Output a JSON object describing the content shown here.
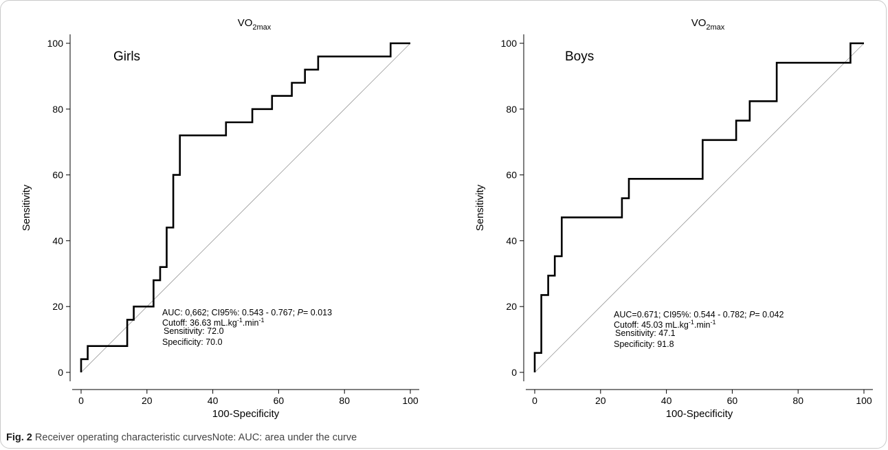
{
  "figure": {
    "caption_label": "Fig. 2",
    "caption_text": "Receiver operating characteristic curvesNote: AUC: area under the curve"
  },
  "chart_data": [
    {
      "type": "line",
      "title_base": "VO",
      "title_sub": "2max",
      "panel_label": "Girls",
      "xlabel": "100-Specificity",
      "ylabel": "Sensitivity",
      "xlim": [
        0,
        100
      ],
      "ylim": [
        0,
        100
      ],
      "x_ticks": [
        0,
        20,
        40,
        60,
        80,
        100
      ],
      "y_ticks": [
        0,
        20,
        40,
        60,
        80,
        100
      ],
      "grid": false,
      "reference_line": [
        [
          0,
          0
        ],
        [
          100,
          100
        ]
      ],
      "series": [
        {
          "points": [
            [
              0,
              0
            ],
            [
              0,
              4
            ],
            [
              2,
              4
            ],
            [
              2,
              8
            ],
            [
              14,
              8
            ],
            [
              14,
              16
            ],
            [
              16,
              16
            ],
            [
              16,
              20
            ],
            [
              22,
              20
            ],
            [
              22,
              28
            ],
            [
              24,
              28
            ],
            [
              24,
              32
            ],
            [
              26,
              32
            ],
            [
              26,
              44
            ],
            [
              28,
              44
            ],
            [
              28,
              60
            ],
            [
              30,
              60
            ],
            [
              30,
              72
            ],
            [
              44,
              72
            ],
            [
              44,
              76
            ],
            [
              52,
              76
            ],
            [
              52,
              80
            ],
            [
              58,
              80
            ],
            [
              58,
              84
            ],
            [
              64,
              84
            ],
            [
              64,
              88
            ],
            [
              68,
              88
            ],
            [
              68,
              92
            ],
            [
              72,
              92
            ],
            [
              72,
              96
            ],
            [
              94,
              96
            ],
            [
              94,
              100
            ],
            [
              100,
              100
            ]
          ]
        }
      ],
      "annotation": {
        "line1_a": "AUC: 0,662; CI95%: 0.543 - 0.767; ",
        "line1_p": "P",
        "line1_b": "= 0.013",
        "cutoff_a": "Cutoff: 36.63 mL.kg",
        "cutoff_sup1": "-1",
        "cutoff_b": ".min",
        "cutoff_sup2": "-1",
        "sensitivity": "Sensitivity: 72.0",
        "specificity": "Specificity: 70.0"
      }
    },
    {
      "type": "line",
      "title_base": "VO",
      "title_sub": "2max",
      "panel_label": "Boys",
      "xlabel": "100-Specificity",
      "ylabel": "Sensitivity",
      "xlim": [
        0,
        100
      ],
      "ylim": [
        0,
        100
      ],
      "x_ticks": [
        0,
        20,
        40,
        60,
        80,
        100
      ],
      "y_ticks": [
        0,
        20,
        40,
        60,
        80,
        100
      ],
      "grid": false,
      "reference_line": [
        [
          0,
          0
        ],
        [
          100,
          100
        ]
      ],
      "series": [
        {
          "points": [
            [
              0,
              0
            ],
            [
              0,
              5.9
            ],
            [
              2,
              5.9
            ],
            [
              2,
              23.5
            ],
            [
              4.1,
              23.5
            ],
            [
              4.1,
              29.4
            ],
            [
              6.1,
              29.4
            ],
            [
              6.1,
              35.3
            ],
            [
              8.2,
              35.3
            ],
            [
              8.2,
              47.1
            ],
            [
              26.5,
              47.1
            ],
            [
              26.5,
              52.9
            ],
            [
              28.6,
              52.9
            ],
            [
              28.6,
              58.8
            ],
            [
              51,
              58.8
            ],
            [
              51,
              70.6
            ],
            [
              61.2,
              70.6
            ],
            [
              61.2,
              76.5
            ],
            [
              65.3,
              76.5
            ],
            [
              65.3,
              82.4
            ],
            [
              73.5,
              82.4
            ],
            [
              73.5,
              94.1
            ],
            [
              95.9,
              94.1
            ],
            [
              95.9,
              100
            ],
            [
              100,
              100
            ]
          ]
        }
      ],
      "annotation": {
        "line1_a": "AUC=0.671; CI95%: 0.544 - 0.782; ",
        "line1_p": "P",
        "line1_b": "= 0.042",
        "cutoff_a": "Cutoff: 45.03 mL.kg",
        "cutoff_sup1": "-1",
        "cutoff_b": ".min",
        "cutoff_sup2": "-1",
        "sensitivity": "Sensitivity: 47.1",
        "specificity": "Specificity: 91.8"
      }
    }
  ]
}
